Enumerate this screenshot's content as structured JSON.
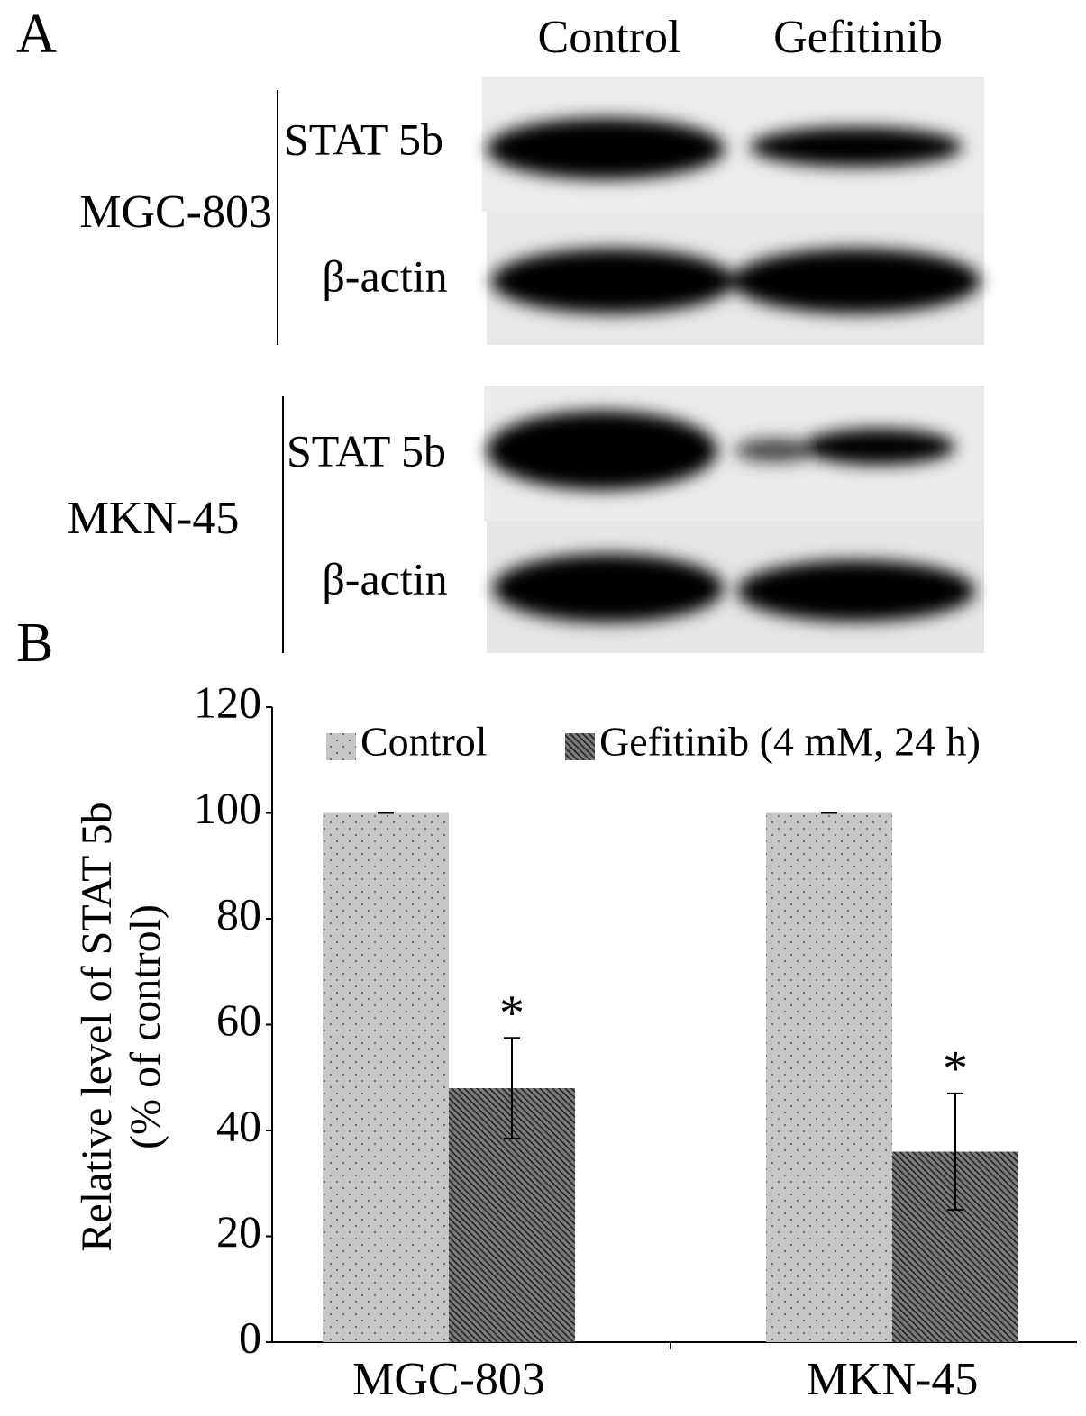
{
  "panel_a": {
    "label": "A",
    "lanes": [
      "Control",
      "Gefitinib"
    ],
    "blots": [
      {
        "cell_line": "MGC-803",
        "rows": [
          "STAT 5b",
          "β-actin"
        ]
      },
      {
        "cell_line": "MKN-45",
        "rows": [
          "STAT 5b",
          "β-actin"
        ]
      }
    ]
  },
  "chart_data": {
    "type": "bar",
    "panel_label": "B",
    "y_label": [
      "Relative level of STAT 5b",
      "(% of control)"
    ],
    "categories": [
      "MGC-803",
      "MKN-45"
    ],
    "series": [
      {
        "name": "Control",
        "color": "#c6c6c6",
        "values": [
          100,
          100
        ],
        "errors": [
          0,
          0
        ]
      },
      {
        "name": "Gefitinib (4 mM, 24 h)",
        "color": "#7a7a7a",
        "values": [
          48,
          36
        ],
        "errors": [
          9.5,
          11
        ],
        "annotations": [
          "*",
          "*"
        ]
      }
    ],
    "ylim": [
      0,
      120
    ],
    "yticks": [
      0,
      20,
      40,
      60,
      80,
      100,
      120
    ],
    "legend": "top"
  }
}
